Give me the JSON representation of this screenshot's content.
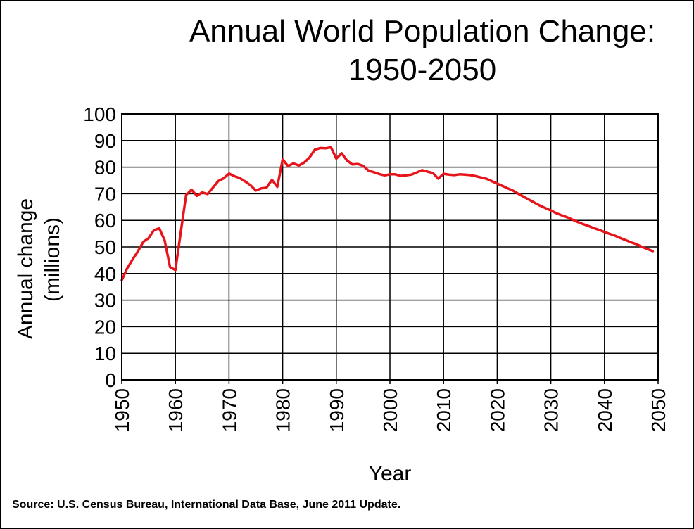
{
  "source_note": "Source: U.S. Census Bureau, International Data Base, June 2011 Update.",
  "chart_data": {
    "type": "line",
    "title_lines": [
      "Annual World Population Change:",
      "1950-2050"
    ],
    "xlabel": "Year",
    "ylabel_lines": [
      "Annual change",
      "(millions)"
    ],
    "xlim": [
      1950,
      2050
    ],
    "ylim": [
      0,
      100
    ],
    "x_ticks": [
      "1950",
      "1960",
      "1970",
      "1980",
      "1990",
      "2000",
      "2010",
      "2020",
      "2030",
      "2040",
      "2050"
    ],
    "y_ticks": [
      "0",
      "10",
      "20",
      "30",
      "40",
      "50",
      "60",
      "70",
      "80",
      "90",
      "100"
    ],
    "grid": true,
    "legend": "none",
    "line_color": "#e8141c",
    "series": [
      {
        "x": [
          1950,
          1951,
          1952,
          1953,
          1954,
          1955,
          1956,
          1957,
          1958,
          1959,
          1960,
          1961,
          1962,
          1963,
          1964,
          1965,
          1966,
          1967,
          1968,
          1969,
          1970,
          1971,
          1972,
          1973,
          1974,
          1975,
          1976,
          1977,
          1978,
          1979,
          1980,
          1981,
          1982,
          1983,
          1984,
          1985,
          1986,
          1987,
          1988,
          1989,
          1990,
          1991,
          1992,
          1993,
          1994,
          1995,
          1996,
          1997,
          1998,
          1999,
          2000,
          2001,
          2002,
          2003,
          2004,
          2005,
          2006,
          2007,
          2008,
          2009,
          2010,
          2011,
          2012,
          2013,
          2014,
          2015,
          2016,
          2017,
          2018,
          2019,
          2020,
          2021,
          2022,
          2023,
          2024,
          2025,
          2026,
          2027,
          2028,
          2029,
          2030,
          2031,
          2032,
          2033,
          2034,
          2035,
          2036,
          2037,
          2038,
          2039,
          2040,
          2041,
          2042,
          2043,
          2044,
          2045,
          2046,
          2047,
          2048,
          2049
        ],
        "values": [
          37.5,
          41.9,
          45.2,
          48.3,
          51.9,
          53.3,
          56.3,
          57.0,
          52.4,
          42.4,
          41.3,
          55.5,
          69.5,
          71.5,
          69.2,
          70.5,
          69.9,
          72.3,
          74.8,
          75.8,
          77.6,
          76.6,
          75.9,
          74.6,
          73.2,
          71.2,
          72.0,
          72.3,
          75.2,
          72.6,
          82.9,
          80.4,
          81.4,
          80.6,
          81.7,
          83.6,
          86.6,
          87.2,
          87.1,
          87.5,
          83.2,
          85.2,
          82.5,
          81.0,
          81.2,
          80.5,
          78.7,
          78.1,
          77.4,
          76.9,
          77.3,
          77.3,
          76.7,
          76.9,
          77.2,
          78.0,
          78.9,
          78.3,
          77.8,
          75.7,
          77.5,
          77.2,
          77.0,
          77.3,
          77.2,
          77.0,
          76.6,
          76.1,
          75.6,
          74.7,
          73.8,
          72.9,
          72.0,
          71.1,
          69.9,
          68.8,
          67.7,
          66.6,
          65.5,
          64.6,
          63.7,
          62.7,
          61.9,
          61.2,
          60.3,
          59.4,
          58.6,
          57.9,
          57.1,
          56.4,
          55.6,
          54.9,
          54.2,
          53.3,
          52.5,
          51.7,
          51.0,
          50.0,
          49.2,
          48.4
        ]
      }
    ]
  }
}
